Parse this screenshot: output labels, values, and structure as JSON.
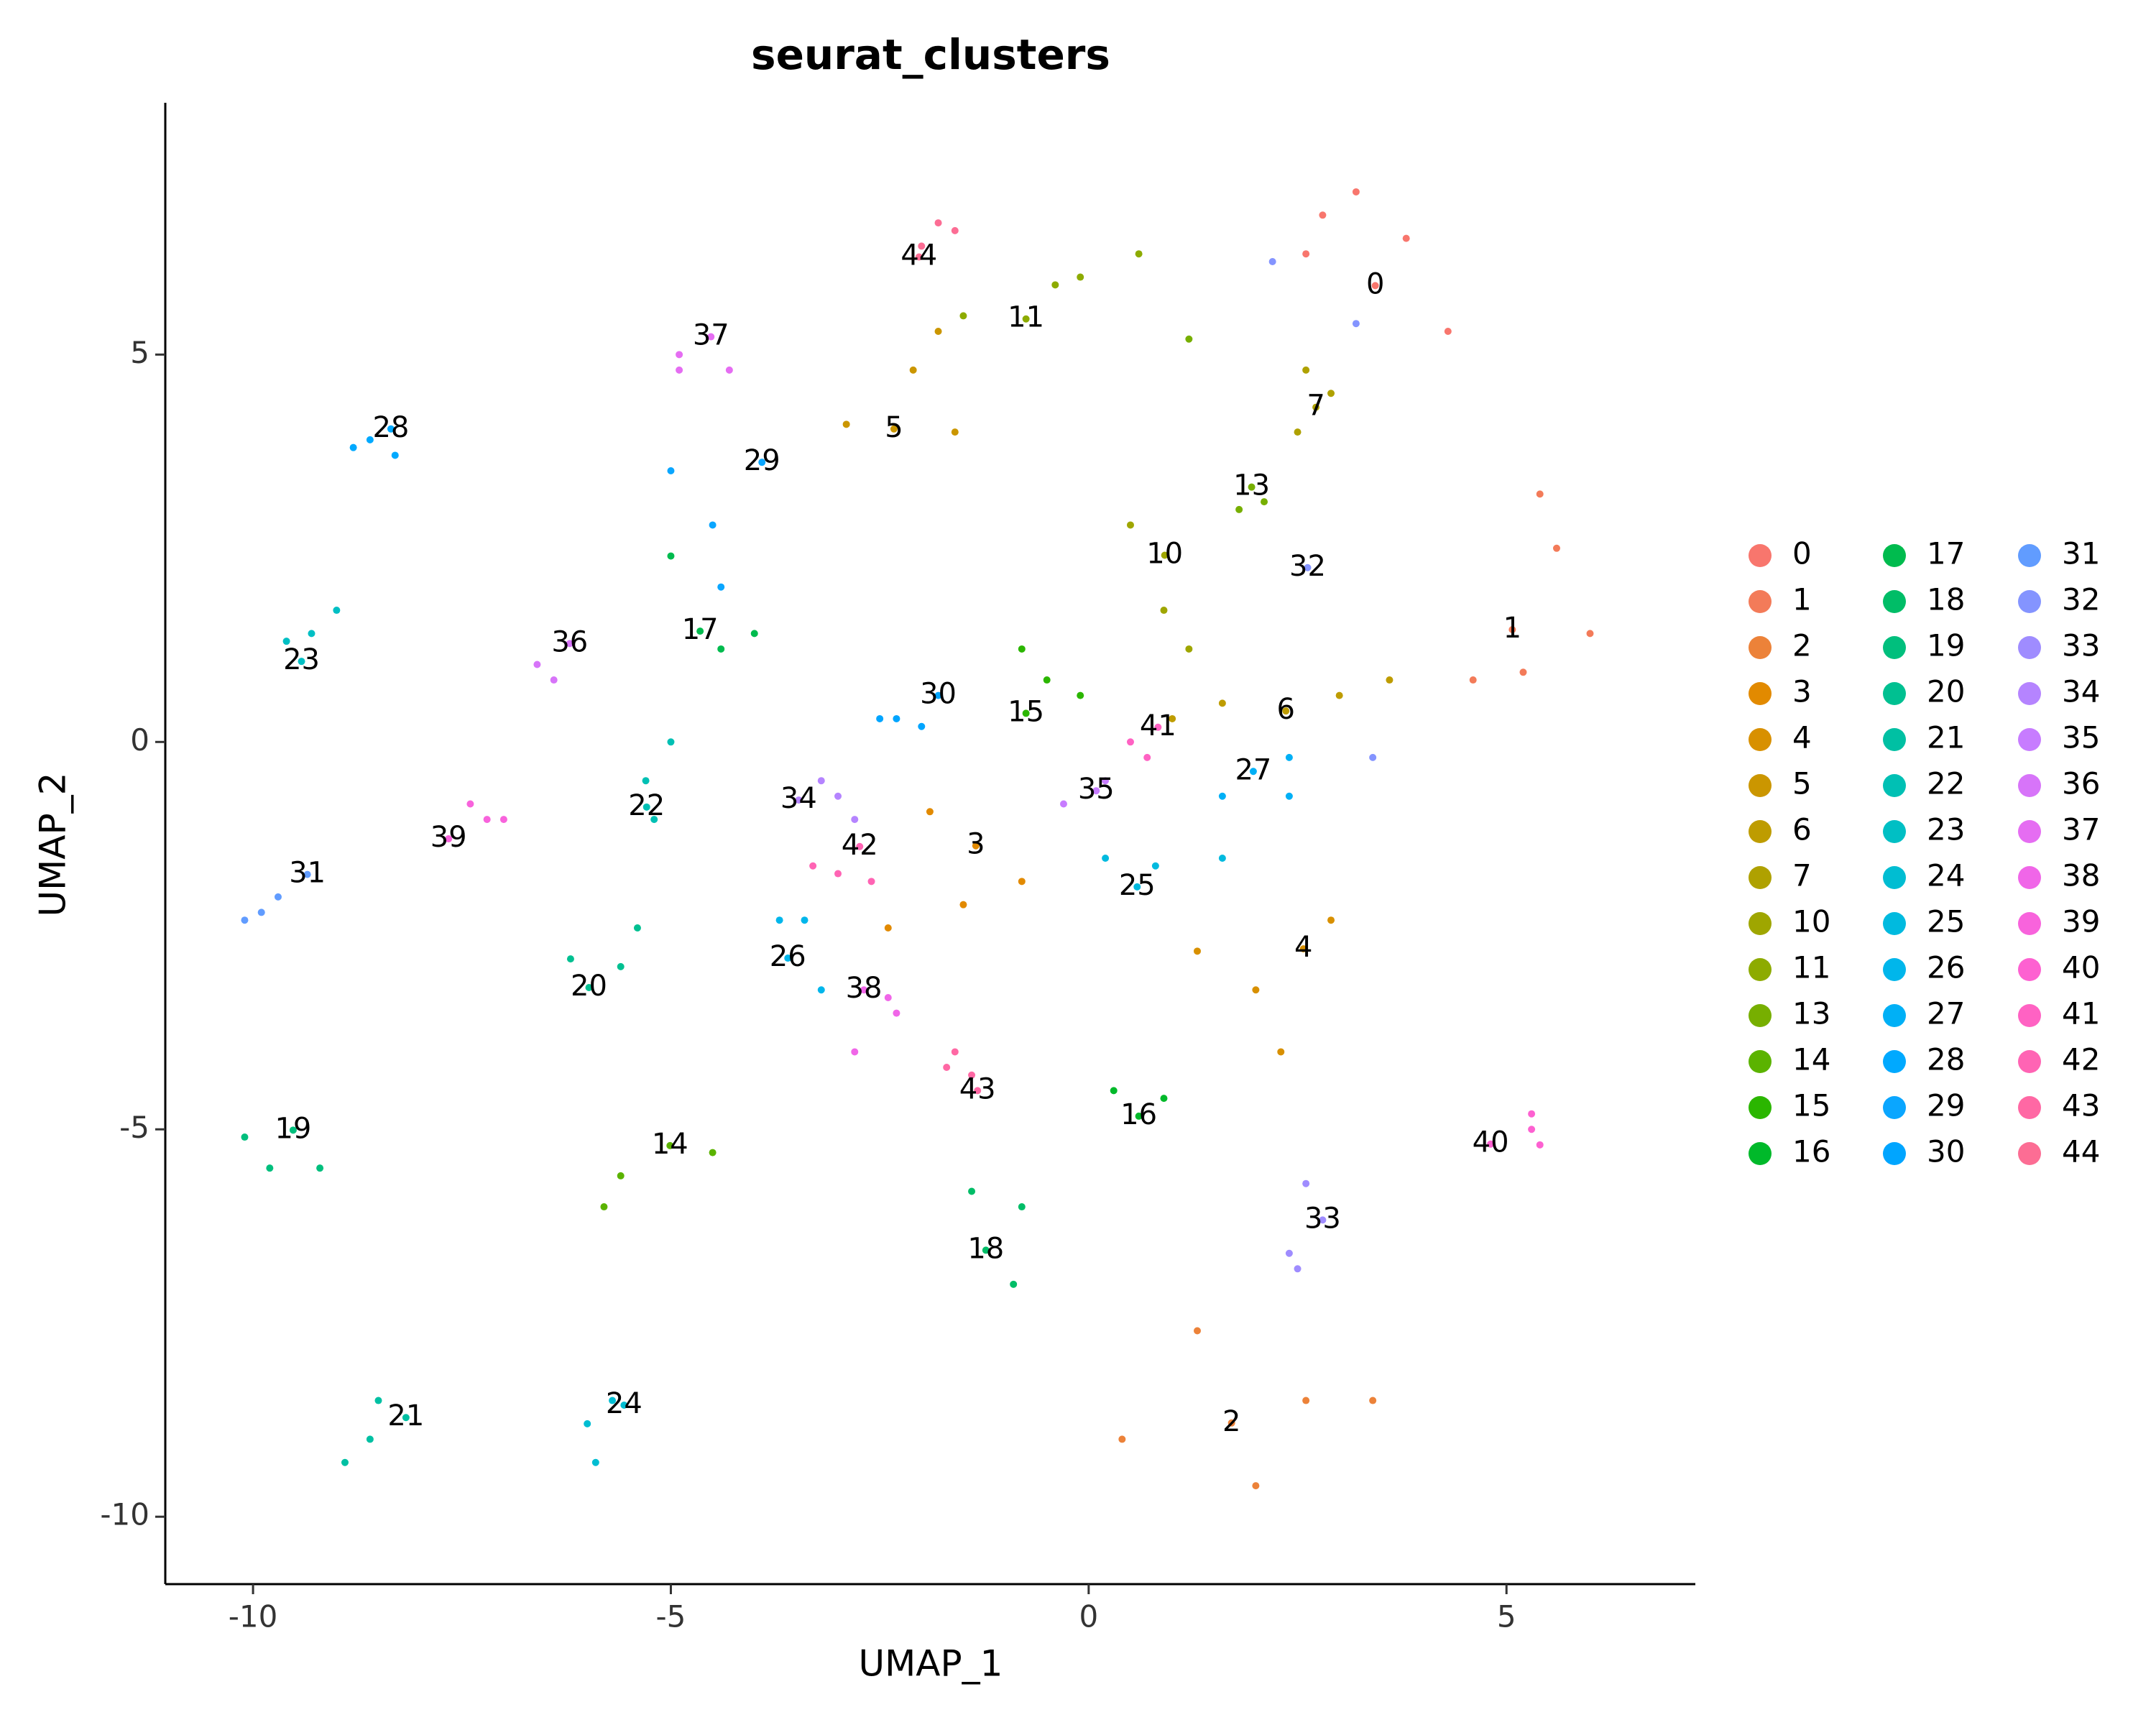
{
  "chart_data": {
    "type": "scatter",
    "title": "seurat_clusters",
    "x_label": "UMAP_1",
    "y_label": "UMAP_2",
    "xlim": [
      -11.05,
      7.26
    ],
    "ylim": [
      -10.87,
      8.25
    ],
    "xticks": [
      -10,
      -5,
      0,
      5
    ],
    "yticks": [
      -10,
      -5,
      0,
      5
    ],
    "grid": false,
    "legend": "right",
    "series": [
      {
        "name": "0",
        "color": "#F8766D",
        "x": [
          3.43,
          2.8,
          3.8,
          4.3,
          3.2,
          2.6
        ],
        "y": [
          5.89,
          6.8,
          6.5,
          5.3,
          7.1,
          6.3
        ]
      },
      {
        "name": "1",
        "color": "#F37B59",
        "x": [
          5.07,
          5.6,
          6.0,
          4.6,
          5.4,
          5.2
        ],
        "y": [
          1.45,
          2.5,
          1.4,
          0.8,
          3.2,
          0.9
        ]
      },
      {
        "name": "2",
        "color": "#EC8239",
        "x": [
          1.71,
          2.6,
          3.4,
          1.3,
          2.0,
          0.4
        ],
        "y": [
          -8.79,
          -8.5,
          -8.5,
          -7.6,
          -9.6,
          -9.0
        ]
      },
      {
        "name": "3",
        "color": "#E28A00",
        "x": [
          -1.35,
          -1.9,
          -0.8,
          -2.4,
          -1.5
        ],
        "y": [
          -1.34,
          -0.9,
          -1.8,
          -2.4,
          -2.1
        ]
      },
      {
        "name": "4",
        "color": "#D89000",
        "x": [
          2.57,
          2.0,
          2.9,
          2.3,
          1.3
        ],
        "y": [
          -2.67,
          -3.2,
          -2.3,
          -4.0,
          -2.7
        ]
      },
      {
        "name": "5",
        "color": "#CB9600",
        "x": [
          -2.33,
          -1.8,
          -2.9,
          -1.6,
          -2.1
        ],
        "y": [
          4.04,
          5.3,
          4.1,
          4.0,
          4.8
        ]
      },
      {
        "name": "6",
        "color": "#BE9C00",
        "x": [
          2.36,
          1.6,
          3.6,
          1.0,
          3.0
        ],
        "y": [
          0.4,
          0.5,
          0.8,
          0.3,
          0.6
        ]
      },
      {
        "name": "7",
        "color": "#AFA100",
        "x": [
          2.72,
          2.5,
          2.9,
          2.6
        ],
        "y": [
          4.32,
          4.0,
          4.5,
          4.8
        ]
      },
      {
        "name": "10",
        "color": "#9FA600",
        "x": [
          0.91,
          0.5,
          0.9,
          1.2
        ],
        "y": [
          2.41,
          2.8,
          1.7,
          1.2
        ]
      },
      {
        "name": "11",
        "color": "#8DAB00",
        "x": [
          -0.75,
          -0.1,
          0.6,
          -1.5,
          -0.4
        ],
        "y": [
          5.46,
          6.0,
          6.3,
          5.5,
          5.9
        ]
      },
      {
        "name": "13",
        "color": "#77AF00",
        "x": [
          1.95,
          1.8,
          2.1,
          1.2
        ],
        "y": [
          3.29,
          3.0,
          3.1,
          5.2
        ]
      },
      {
        "name": "14",
        "color": "#5BB300",
        "x": [
          -5.01,
          -5.6,
          -4.5,
          -5.8
        ],
        "y": [
          -5.21,
          -5.6,
          -5.3,
          -6.0
        ]
      },
      {
        "name": "15",
        "color": "#2BB600",
        "x": [
          -0.75,
          -0.5,
          -0.1,
          -0.8
        ],
        "y": [
          0.37,
          0.8,
          0.6,
          1.2
        ]
      },
      {
        "name": "16",
        "color": "#00B92A",
        "x": [
          0.6,
          0.3,
          0.9
        ],
        "y": [
          -4.83,
          -4.5,
          -4.6
        ]
      },
      {
        "name": "17",
        "color": "#00BB4E",
        "x": [
          -4.65,
          -5.0,
          -4.4,
          -4.0
        ],
        "y": [
          1.43,
          2.4,
          1.2,
          1.4
        ]
      },
      {
        "name": "18",
        "color": "#00BD67",
        "x": [
          -1.23,
          -1.4,
          -0.8,
          -0.9
        ],
        "y": [
          -6.56,
          -5.8,
          -6.0,
          -7.0
        ]
      },
      {
        "name": "19",
        "color": "#00BF7D",
        "x": [
          -9.52,
          -10.1,
          -9.8,
          -9.2
        ],
        "y": [
          -5.01,
          -5.1,
          -5.5,
          -5.5
        ]
      },
      {
        "name": "20",
        "color": "#00C091",
        "x": [
          -5.98,
          -6.2,
          -5.6,
          -5.4
        ],
        "y": [
          -3.17,
          -2.8,
          -2.9,
          -2.4
        ]
      },
      {
        "name": "21",
        "color": "#00C0A3",
        "x": [
          -8.17,
          -8.6,
          -8.5,
          -8.9
        ],
        "y": [
          -8.72,
          -9.0,
          -8.5,
          -9.3
        ]
      },
      {
        "name": "22",
        "color": "#00C0B4",
        "x": [
          -5.29,
          -5.3,
          -5.0,
          -5.2
        ],
        "y": [
          -0.84,
          -0.5,
          0.0,
          -1.0
        ]
      },
      {
        "name": "23",
        "color": "#00BFC4",
        "x": [
          -9.42,
          -9.3,
          -9.0,
          -9.6
        ],
        "y": [
          1.04,
          1.4,
          1.7,
          1.3
        ]
      },
      {
        "name": "24",
        "color": "#00BDD2",
        "x": [
          -5.56,
          -6.0,
          -5.9,
          -5.7
        ],
        "y": [
          -8.56,
          -8.8,
          -9.3,
          -8.5
        ]
      },
      {
        "name": "25",
        "color": "#00BADF",
        "x": [
          0.58,
          0.8,
          1.6,
          0.2
        ],
        "y": [
          -1.87,
          -1.6,
          -1.5,
          -1.5
        ]
      },
      {
        "name": "26",
        "color": "#00B6EB",
        "x": [
          -3.6,
          -3.7,
          -3.4,
          -3.2
        ],
        "y": [
          -2.79,
          -2.3,
          -2.3,
          -3.2
        ]
      },
      {
        "name": "27",
        "color": "#00B0F6",
        "x": [
          1.97,
          1.6,
          2.4,
          2.4
        ],
        "y": [
          -0.38,
          -0.7,
          -0.7,
          -0.2
        ]
      },
      {
        "name": "28",
        "color": "#00A9FF",
        "x": [
          -8.35,
          -8.8,
          -8.6,
          -8.3
        ],
        "y": [
          4.04,
          3.8,
          3.9,
          3.7
        ]
      },
      {
        "name": "29",
        "color": "#0AA6FF",
        "x": [
          -3.91,
          -5.0,
          -4.5,
          -4.4
        ],
        "y": [
          3.61,
          3.5,
          2.8,
          2.0
        ]
      },
      {
        "name": "30",
        "color": "#00A5FF",
        "x": [
          -1.8,
          -2.3,
          -2.0,
          -2.5
        ],
        "y": [
          0.6,
          0.3,
          0.2,
          0.3
        ]
      },
      {
        "name": "31",
        "color": "#619CFF",
        "x": [
          -9.35,
          -9.7,
          -9.9,
          -10.1
        ],
        "y": [
          -1.71,
          -2.0,
          -2.2,
          -2.3
        ]
      },
      {
        "name": "32",
        "color": "#8494FF",
        "x": [
          2.62,
          2.2,
          3.2,
          3.4
        ],
        "y": [
          2.25,
          6.2,
          5.4,
          -0.2
        ]
      },
      {
        "name": "33",
        "color": "#9F8CFF",
        "x": [
          2.8,
          2.4,
          2.5,
          2.6
        ],
        "y": [
          -6.17,
          -6.6,
          -6.8,
          -5.7
        ]
      },
      {
        "name": "34",
        "color": "#B584FF",
        "x": [
          -3.47,
          -3.2,
          -3.0,
          -2.8
        ],
        "y": [
          -0.75,
          -0.5,
          -0.7,
          -1.0
        ]
      },
      {
        "name": "35",
        "color": "#C77CFF",
        "x": [
          0.09,
          -0.3,
          0.2
        ],
        "y": [
          -0.63,
          -0.8,
          -0.5
        ]
      },
      {
        "name": "36",
        "color": "#D774F9",
        "x": [
          -6.21,
          -6.6,
          -6.4
        ],
        "y": [
          1.27,
          1.0,
          0.8
        ]
      },
      {
        "name": "37",
        "color": "#E56DF2",
        "x": [
          -4.52,
          -4.9,
          -4.9,
          -4.3
        ],
        "y": [
          5.23,
          5.0,
          4.8,
          4.8
        ]
      },
      {
        "name": "38",
        "color": "#F066E8",
        "x": [
          -2.69,
          -2.8,
          -2.3,
          -2.4
        ],
        "y": [
          -3.2,
          -4.0,
          -3.5,
          -3.3
        ]
      },
      {
        "name": "39",
        "color": "#F863DC",
        "x": [
          -7.66,
          -7.4,
          -7.2,
          -7.0
        ],
        "y": [
          -1.25,
          -0.8,
          -1.0,
          -1.0
        ]
      },
      {
        "name": "40",
        "color": "#FD61D1",
        "x": [
          4.81,
          5.3,
          5.3,
          5.4
        ],
        "y": [
          -5.19,
          -4.8,
          -5.0,
          -5.2
        ]
      },
      {
        "name": "41",
        "color": "#FF62C3",
        "x": [
          0.83,
          0.5,
          0.7
        ],
        "y": [
          0.19,
          0.0,
          -0.2
        ]
      },
      {
        "name": "42",
        "color": "#FF64B4",
        "x": [
          -2.74,
          -3.3,
          -3.0,
          -2.6
        ],
        "y": [
          -1.35,
          -1.6,
          -1.7,
          -1.8
        ]
      },
      {
        "name": "43",
        "color": "#FF68A4",
        "x": [
          -1.33,
          -1.7,
          -1.6,
          -1.4
        ],
        "y": [
          -4.5,
          -4.2,
          -4.0,
          -4.3
        ]
      },
      {
        "name": "44",
        "color": "#FC6D94",
        "x": [
          -2.03,
          -1.8,
          -2.0,
          -1.6
        ],
        "y": [
          6.26,
          6.7,
          6.4,
          6.6
        ]
      }
    ]
  }
}
